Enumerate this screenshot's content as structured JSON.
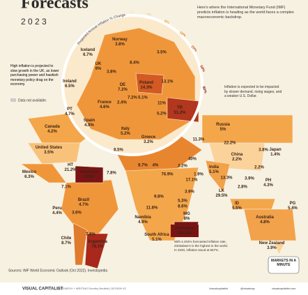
{
  "header": {
    "title": "Forecasts",
    "year": "2 0 2 3",
    "intro": "Here's where the International Monetary Fund (IMF) predicts inflation is heading as the world faces a complex macroeconomic backdrop."
  },
  "scale": {
    "title": "Projected Annual Inflation % Change",
    "ticks": [
      "0%",
      "4%",
      "8%",
      "10%",
      "20%",
      "50%",
      "80%"
    ]
  },
  "notes": {
    "uk": "High inflation is projected to slow growth in the UK, as lower purchasing power and hawkish monetary policy drag on the economy.",
    "na": "Data not available.",
    "usd": "Inflation is expected to be impacted by slower demand, rising wages, and a weaker U.S. Dollar.",
    "zimbabwe": "With a 204% forecasted inflation rate, Zimbabwe's is the highest in the world. In 2020, inflation stood at 557%."
  },
  "europe": [
    {
      "name": "Iceland",
      "value": "6.7%"
    },
    {
      "name": "Norway",
      "value": "3.8%"
    },
    {
      "name": "UK",
      "value": "9%"
    },
    {
      "name": "Ireland",
      "value": "6.5%"
    },
    {
      "name": "DE",
      "value": "7.2%"
    },
    {
      "name": "Poland",
      "value": "14.3%"
    },
    {
      "name": "France",
      "value": "4.6%"
    },
    {
      "name": "PT",
      "value": "4.7%"
    },
    {
      "name": "Spain",
      "value": "4.9%"
    },
    {
      "name": "Italy",
      "value": "5.2%"
    },
    {
      "name": "Greece",
      "value": "3.2%"
    },
    {
      "name": "TR",
      "value": "51.2%"
    },
    {
      "value": "3.5%"
    },
    {
      "value": "8.4%"
    },
    {
      "value": "3.8%"
    },
    {
      "value": "13.1%"
    },
    {
      "value": "7.2%"
    },
    {
      "value": "5.1%"
    },
    {
      "value": "2.4%"
    },
    {
      "value": "11%"
    },
    {
      "value": "5.2%"
    }
  ],
  "world": [
    {
      "name": "Canada",
      "value": "4.2%"
    },
    {
      "name": "United States",
      "value": "3.5%"
    },
    {
      "name": "Mexico",
      "value": "6.3%"
    },
    {
      "name": "HT",
      "value": "21.2%"
    },
    {
      "name": "Venezuela",
      "value": "195%"
    },
    {
      "name": "Peru",
      "value": "4.4%"
    },
    {
      "name": "Brazil",
      "value": "4.7%"
    },
    {
      "name": "Chile",
      "value": "8.7%"
    },
    {
      "name": "Argentina",
      "value": "76.1%"
    },
    {
      "name": "Russia",
      "value": "5%"
    },
    {
      "name": "China",
      "value": "2.2%"
    },
    {
      "name": "Japan",
      "value": "1.4%"
    },
    {
      "name": "India",
      "value": "5.1%"
    },
    {
      "name": "LK",
      "value": "29.5%"
    },
    {
      "name": "PH",
      "value": "4.3%"
    },
    {
      "name": "ID",
      "value": "5.5%"
    },
    {
      "name": "PG",
      "value": "5.4%"
    },
    {
      "name": "Australia",
      "value": "4.8%"
    },
    {
      "name": "New Zealand",
      "value": "3.9%"
    },
    {
      "name": "Namibia",
      "value": "4.9%"
    },
    {
      "name": "MG",
      "value": "8%"
    },
    {
      "name": "South Africa",
      "value": "5.1%"
    },
    {
      "name": "Zimbabwe",
      "value": "204.6%"
    },
    {
      "value": "8.5%"
    },
    {
      "value": "7.8%"
    },
    {
      "value": "40%"
    },
    {
      "value": "22.2%"
    },
    {
      "value": "11.3%"
    },
    {
      "value": "8.7%"
    },
    {
      "value": "4%"
    },
    {
      "value": "76.9%"
    },
    {
      "value": "2.2%"
    },
    {
      "value": "1.9%"
    },
    {
      "value": "17.1%"
    },
    {
      "value": "13.3%"
    },
    {
      "value": "3.9%"
    },
    {
      "value": "2.8%"
    },
    {
      "value": "2.2%"
    },
    {
      "value": "3.8%"
    },
    {
      "value": "3.9%"
    },
    {
      "value": "9.8%"
    },
    {
      "value": "5.3%"
    },
    {
      "value": "8.6%"
    },
    {
      "value": "11.8%"
    },
    {
      "value": "3.6%"
    },
    {
      "value": "7.8%"
    },
    {
      "value": "7.1%"
    }
  ],
  "footer": {
    "source": "Sources: IMF World Economic Outlook (Oct 2022), Investopedia",
    "badge": "MARKETS IN A MINUTE",
    "brand": "VISUAL CAPITALIST",
    "credits": "RESEARCH + WRITING Dorothy Neufeld | DESIGN VC",
    "facebook": "/visualcapitalist",
    "twitter": "@visualcap",
    "site": "visualcapitalist.com"
  }
}
